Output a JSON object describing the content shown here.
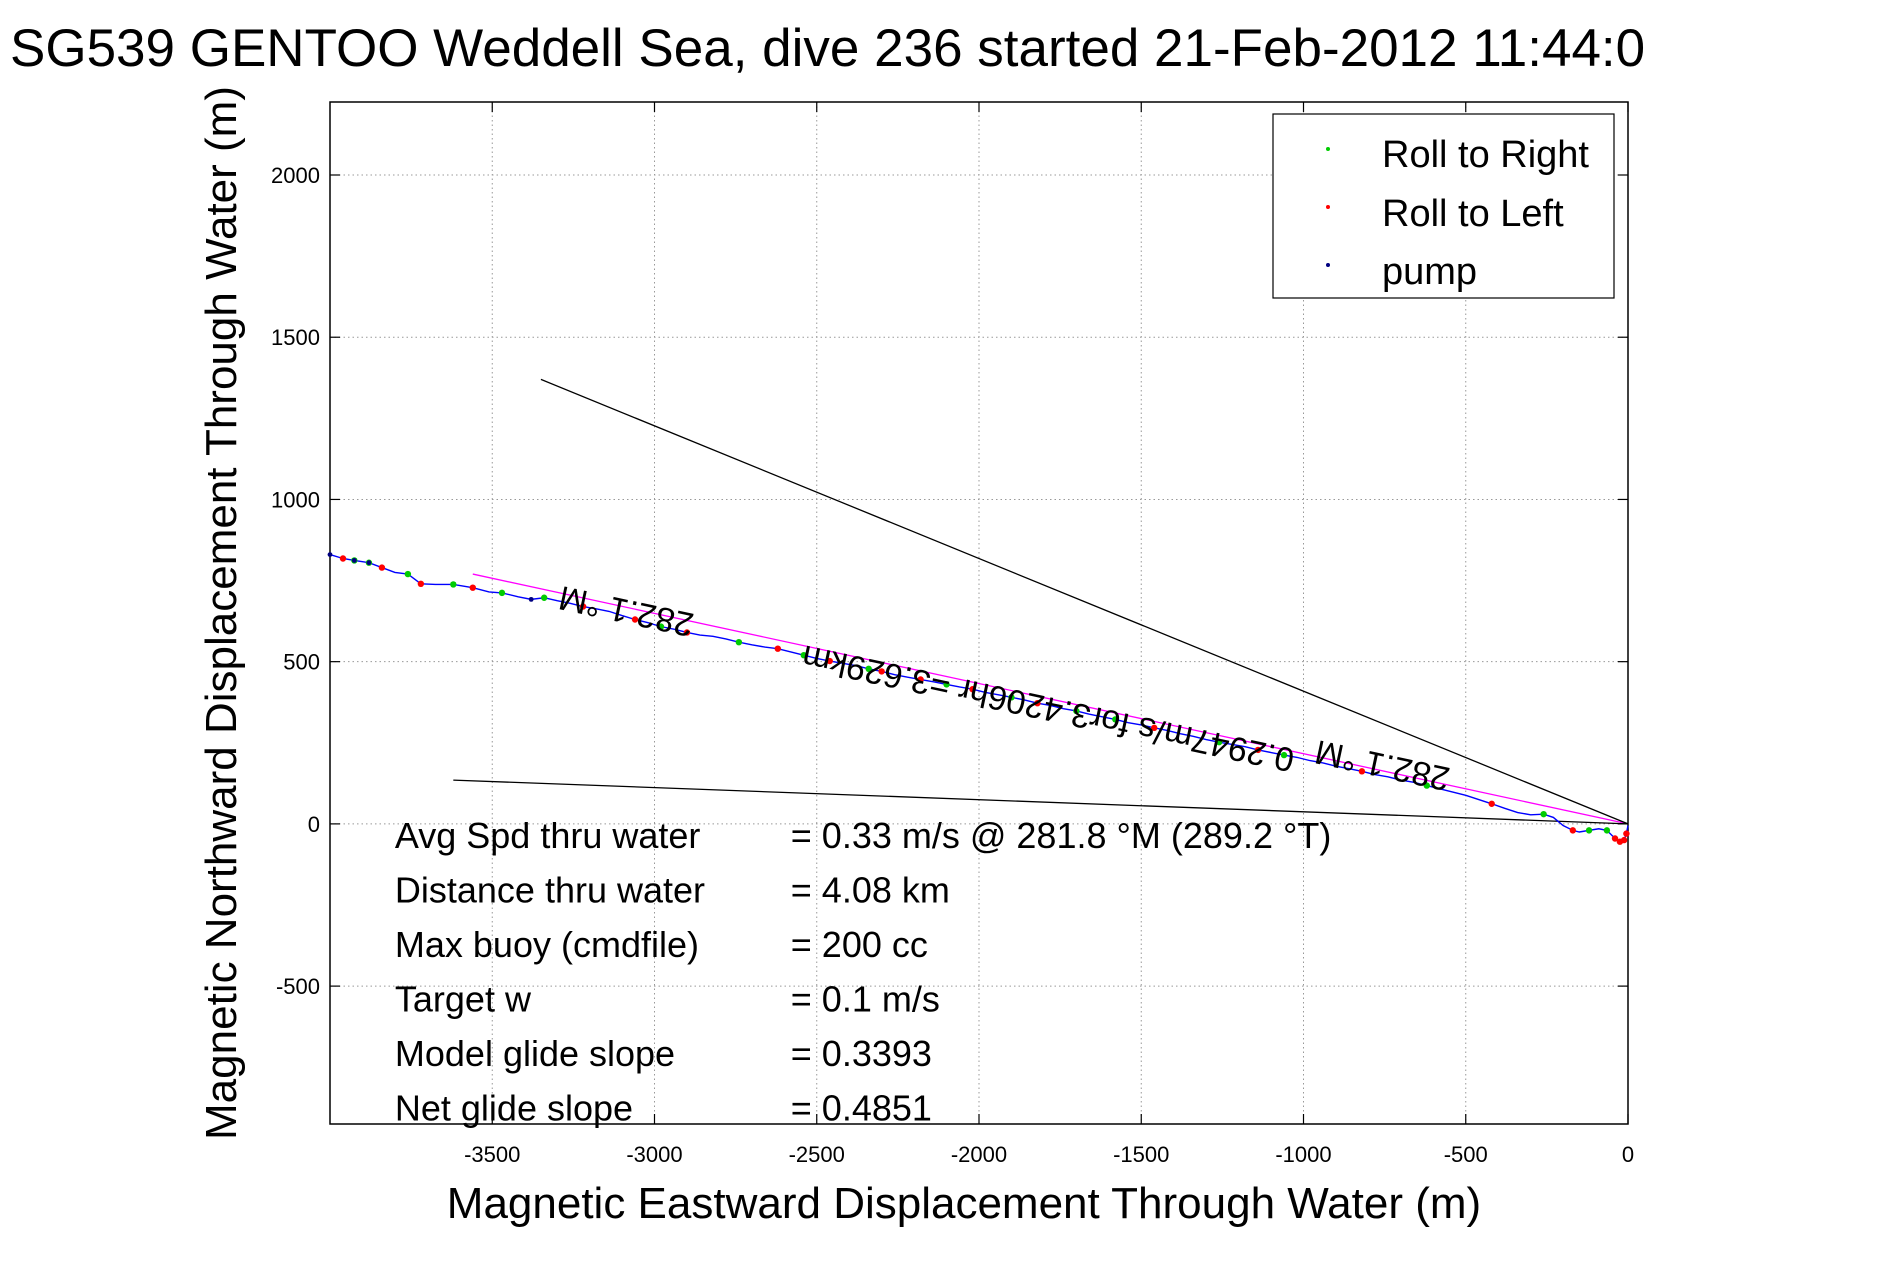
{
  "chart_data": {
    "type": "scatter",
    "title": "SG539 GENTOO Weddell Sea, dive 236 started 21-Feb-2012 11:44:0",
    "xlabel": "Magnetic Eastward Displacement Through Water (m)",
    "ylabel": "Magnetic Northward Displacement Through Water (m)",
    "xlim": [
      -4000,
      0
    ],
    "ylim": [
      -925,
      2225
    ],
    "x_ticks": [
      -3500,
      -3000,
      -2500,
      -2000,
      -1500,
      -1000,
      -500,
      0
    ],
    "x_tick_labels": [
      "-3500",
      "-3000",
      "-2500",
      "-2000",
      "-1500",
      "-1000",
      "-500",
      "0"
    ],
    "y_ticks": [
      -500,
      0,
      500,
      1000,
      1500,
      2000
    ],
    "y_tick_labels": [
      "-500",
      "0",
      "500",
      "1000",
      "1500",
      "2000"
    ],
    "grid": true,
    "legend_position": "top-right",
    "legend": [
      {
        "label": "Roll to Right",
        "color": "#00cc00"
      },
      {
        "label": "Roll to Left",
        "color": "#ff0000"
      },
      {
        "label": "pump",
        "color": "#000080"
      }
    ],
    "track": {
      "color": "#0000ff",
      "points": [
        [
          -4000,
          830
        ],
        [
          -3960,
          818
        ],
        [
          -3925,
          812
        ],
        [
          -3880,
          805
        ],
        [
          -3840,
          790
        ],
        [
          -3800,
          775
        ],
        [
          -3760,
          770
        ],
        [
          -3720,
          740
        ],
        [
          -3675,
          738
        ],
        [
          -3620,
          738
        ],
        [
          -3560,
          728
        ],
        [
          -3510,
          715
        ],
        [
          -3470,
          712
        ],
        [
          -3420,
          700
        ],
        [
          -3380,
          692
        ],
        [
          -3340,
          697
        ],
        [
          -3300,
          688
        ],
        [
          -3260,
          680
        ],
        [
          -3220,
          670
        ],
        [
          -3180,
          663
        ],
        [
          -3140,
          655
        ],
        [
          -3100,
          642
        ],
        [
          -3060,
          630
        ],
        [
          -3020,
          620
        ],
        [
          -2980,
          608
        ],
        [
          -2940,
          600
        ],
        [
          -2900,
          590
        ],
        [
          -2860,
          582
        ],
        [
          -2820,
          578
        ],
        [
          -2780,
          570
        ],
        [
          -2740,
          560
        ],
        [
          -2700,
          552
        ],
        [
          -2660,
          545
        ],
        [
          -2620,
          540
        ],
        [
          -2580,
          530
        ],
        [
          -2540,
          520
        ],
        [
          -2500,
          510
        ],
        [
          -2460,
          502
        ],
        [
          -2420,
          495
        ],
        [
          -2380,
          488
        ],
        [
          -2340,
          478
        ],
        [
          -2300,
          470
        ],
        [
          -2260,
          460
        ],
        [
          -2220,
          452
        ],
        [
          -2180,
          445
        ],
        [
          -2140,
          438
        ],
        [
          -2100,
          430
        ],
        [
          -2060,
          422
        ],
        [
          -2020,
          415
        ],
        [
          -1980,
          405
        ],
        [
          -1940,
          398
        ],
        [
          -1900,
          390
        ],
        [
          -1860,
          382
        ],
        [
          -1820,
          372
        ],
        [
          -1780,
          365
        ],
        [
          -1740,
          355
        ],
        [
          -1700,
          348
        ],
        [
          -1660,
          338
        ],
        [
          -1620,
          330
        ],
        [
          -1580,
          322
        ],
        [
          -1540,
          312
        ],
        [
          -1500,
          305
        ],
        [
          -1460,
          296
        ],
        [
          -1420,
          288
        ],
        [
          -1380,
          278
        ],
        [
          -1340,
          270
        ],
        [
          -1300,
          260
        ],
        [
          -1260,
          252
        ],
        [
          -1220,
          245
        ],
        [
          -1180,
          238
        ],
        [
          -1140,
          228
        ],
        [
          -1100,
          220
        ],
        [
          -1060,
          212
        ],
        [
          -1020,
          205
        ],
        [
          -980,
          195
        ],
        [
          -940,
          188
        ],
        [
          -900,
          178
        ],
        [
          -860,
          170
        ],
        [
          -820,
          162
        ],
        [
          -780,
          152
        ],
        [
          -740,
          145
        ],
        [
          -700,
          135
        ],
        [
          -660,
          128
        ],
        [
          -620,
          118
        ],
        [
          -580,
          108
        ],
        [
          -540,
          98
        ],
        [
          -500,
          88
        ],
        [
          -460,
          75
        ],
        [
          -420,
          62
        ],
        [
          -380,
          48
        ],
        [
          -340,
          35
        ],
        [
          -300,
          28
        ],
        [
          -260,
          30
        ],
        [
          -230,
          20
        ],
        [
          -200,
          -5
        ],
        [
          -170,
          -20
        ],
        [
          -150,
          -25
        ],
        [
          -120,
          -20
        ],
        [
          -90,
          -15
        ],
        [
          -65,
          -20
        ],
        [
          -40,
          -45
        ],
        [
          -25,
          -55
        ],
        [
          -12,
          -50
        ],
        [
          -5,
          -30
        ],
        [
          0,
          -5
        ]
      ]
    },
    "roll_right": [
      [
        -3925,
        812
      ],
      [
        -3880,
        805
      ],
      [
        -3760,
        770
      ],
      [
        -3620,
        738
      ],
      [
        -3470,
        712
      ],
      [
        -3340,
        697
      ],
      [
        -2980,
        608
      ],
      [
        -2740,
        560
      ],
      [
        -2540,
        520
      ],
      [
        -2340,
        478
      ],
      [
        -2100,
        430
      ],
      [
        -1900,
        390
      ],
      [
        -1700,
        348
      ],
      [
        -1580,
        322
      ],
      [
        -1260,
        252
      ],
      [
        -1060,
        212
      ],
      [
        -620,
        118
      ],
      [
        -260,
        30
      ],
      [
        -120,
        -20
      ],
      [
        -65,
        -20
      ]
    ],
    "roll_left": [
      [
        -3960,
        818
      ],
      [
        -3840,
        790
      ],
      [
        -3720,
        740
      ],
      [
        -3560,
        728
      ],
      [
        -3220,
        670
      ],
      [
        -3060,
        630
      ],
      [
        -2900,
        590
      ],
      [
        -2620,
        540
      ],
      [
        -2460,
        502
      ],
      [
        -2300,
        470
      ],
      [
        -2180,
        445
      ],
      [
        -2020,
        415
      ],
      [
        -1820,
        372
      ],
      [
        -1460,
        296
      ],
      [
        -1140,
        228
      ],
      [
        -820,
        162
      ],
      [
        -420,
        62
      ],
      [
        -170,
        -20
      ],
      [
        -40,
        -45
      ],
      [
        -25,
        -55
      ],
      [
        -12,
        -50
      ],
      [
        -5,
        -30
      ]
    ],
    "pump": [
      [
        -4000,
        830
      ],
      [
        -3925,
        812
      ],
      [
        -3880,
        805
      ],
      [
        -3380,
        692
      ]
    ],
    "reference_lines": [
      {
        "name": "model-heading-line",
        "color": "#ff00ff",
        "points": [
          [
            -3560,
            770
          ],
          [
            0,
            0
          ]
        ]
      },
      {
        "name": "upper-bound-line",
        "color": "#000000",
        "points": [
          [
            -3350,
            1370
          ],
          [
            0,
            0
          ]
        ]
      },
      {
        "name": "lower-bound-line",
        "color": "#000000",
        "points": [
          [
            -3620,
            135
          ],
          [
            0,
            0
          ]
        ]
      }
    ],
    "annotations": [
      {
        "name": "heading-label-start",
        "text": "282.1 °M",
        "x": -3080,
        "y": 690,
        "rotate": 192
      },
      {
        "name": "speed-distance-label",
        "text": "0.2947m/s for3.4206hr =3.629km",
        "x": -1780,
        "y": 390,
        "rotate": 192
      },
      {
        "name": "heading-label-end",
        "text": "282.1 °M",
        "x": -750,
        "y": 215,
        "rotate": 192
      }
    ],
    "stats": [
      {
        "label": "Avg Spd thru water",
        "value": "=  0.33 m/s @ 281.8 °M (289.2 °T)"
      },
      {
        "label": "Distance thru water",
        "value": "=  4.08 km"
      },
      {
        "label": "Max buoy (cmdfile)",
        "value": "= 200 cc"
      },
      {
        "label": "Target w",
        "value": "= 0.1 m/s"
      },
      {
        "label": "Model glide slope",
        "value": "= 0.3393"
      },
      {
        "label": "Net glide slope",
        "value": "= 0.4851"
      }
    ]
  }
}
